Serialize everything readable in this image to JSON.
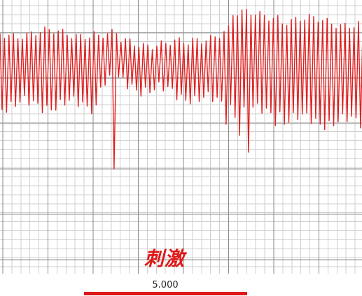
{
  "stimulus_label": "刺激",
  "scale_bar": {
    "value": "5.000"
  },
  "colors": {
    "trace": "#e02020",
    "grid_major": "#8a8a8a",
    "grid_minor": "#cfcfcf",
    "background": "#ffffff",
    "scale_bar": "#e01818",
    "label": "#e01818"
  }
}
